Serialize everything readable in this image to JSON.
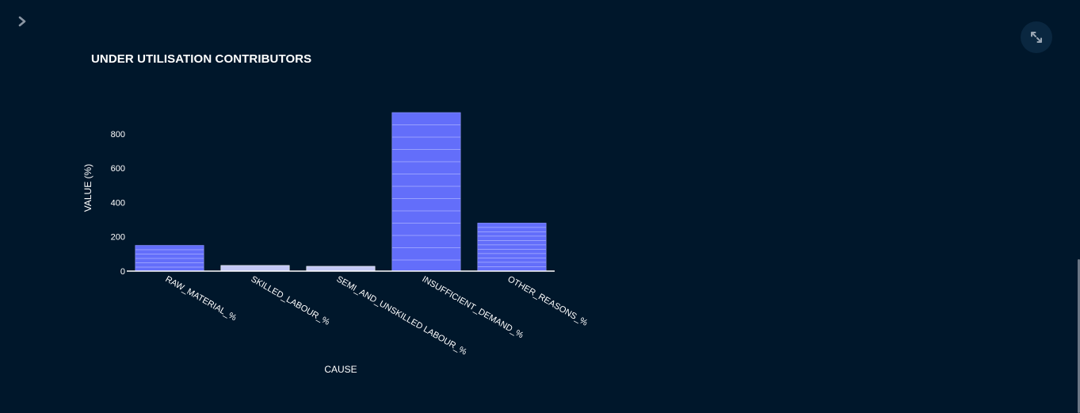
{
  "header": {
    "sidebar_toggle_icon": "chevron-right-icon",
    "expand_icon": "fullscreen-icon"
  },
  "chart_data": {
    "type": "bar",
    "title": "UNDER UTILISATION CONTRIBUTORS",
    "xlabel": "CAUSE",
    "ylabel": "VALUE (%)",
    "categories": [
      "RAW_MATERIAL_%",
      "SKILLED_LABOUR_%",
      "SEMI_AND_UNSKILLED LABOUR_%",
      "INSUFFICIENT_DEMAND_%",
      "OTHER_REASONS_%"
    ],
    "values": [
      150,
      33,
      28,
      924,
      280
    ],
    "yticks": [
      0,
      200,
      400,
      600,
      800
    ],
    "ylim": [
      0,
      924
    ],
    "grid": false,
    "legend": "none",
    "colors": {
      "bar": "#636efa",
      "bar_light": "#c3c8f5",
      "segment_line": "#a9b0ff",
      "background": "#00172b"
    }
  }
}
